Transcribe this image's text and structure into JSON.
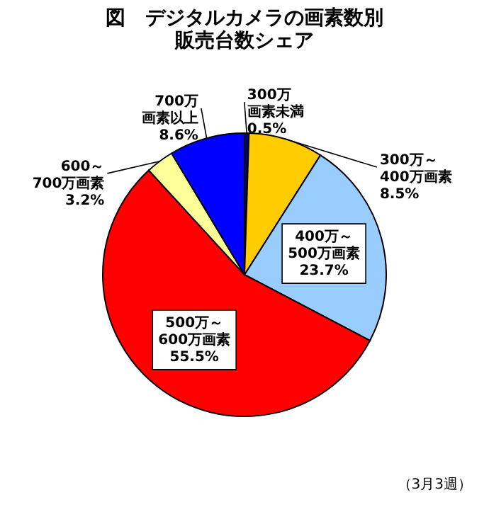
{
  "chart_data": {
    "type": "pie",
    "title": "図　デジタルカメラの画素数別",
    "subtitle": "販売台数シェア",
    "categories": [
      "300万画素未満",
      "300万～400万画素",
      "400万～500万画素",
      "500万～600万画素",
      "600～700万画素",
      "700万画素以上"
    ],
    "values": [
      0.5,
      8.5,
      23.7,
      55.5,
      3.2,
      8.6
    ],
    "value_labels": [
      "0.5%",
      "8.5%",
      "23.7%",
      "55.5%",
      "3.2%",
      "8.6%"
    ],
    "colors": [
      "#000080",
      "#ffcc00",
      "#99ccff",
      "#ff0000",
      "#ffff99",
      "#0000ff"
    ],
    "annotations": [
      "（3月3週）"
    ]
  }
}
